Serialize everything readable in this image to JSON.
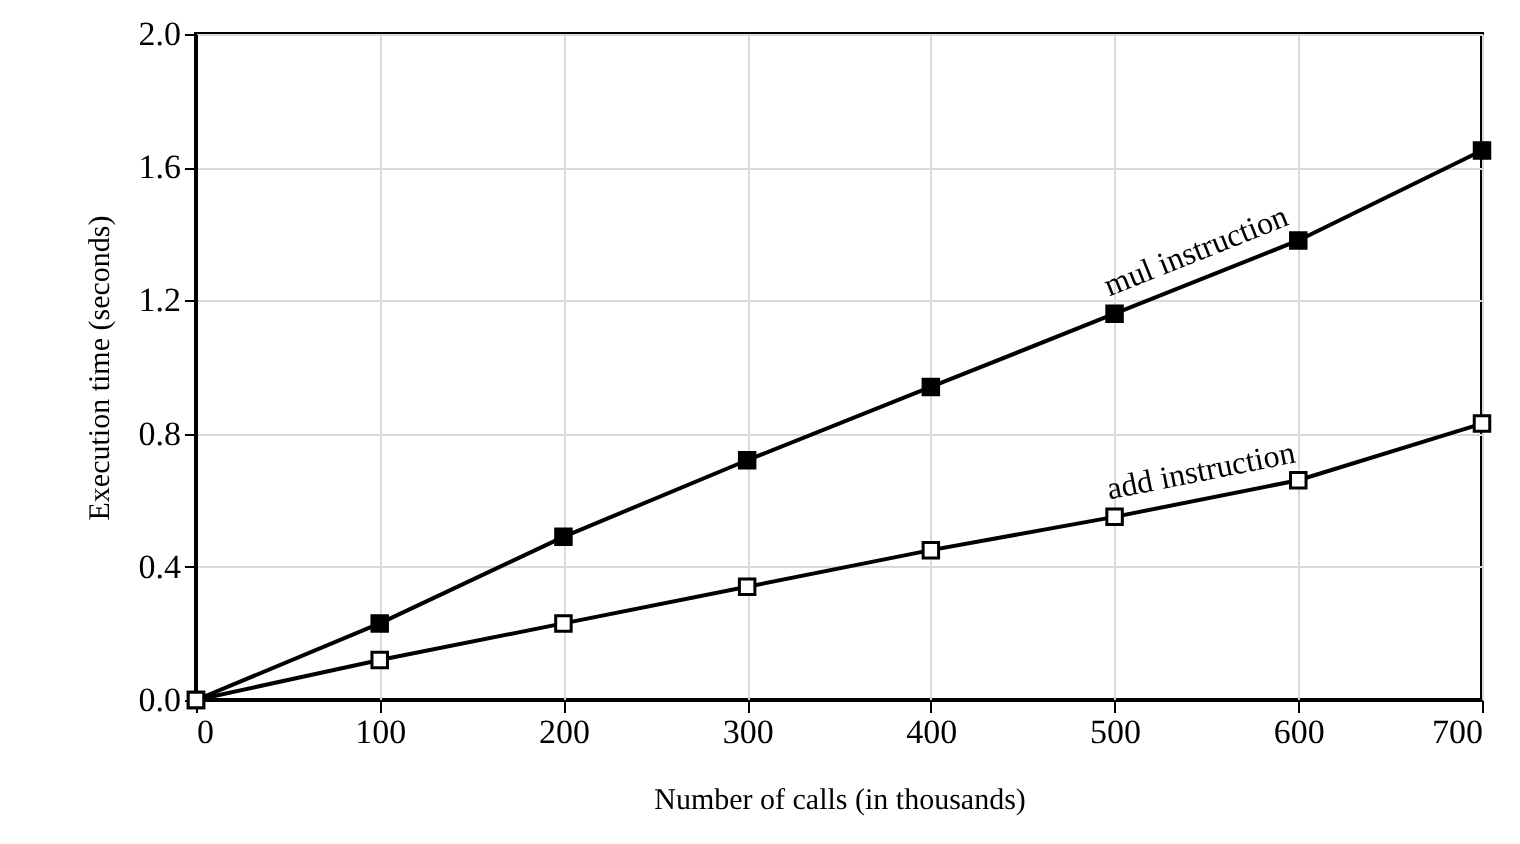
{
  "chart_data": {
    "type": "line",
    "xlabel": "Number of calls (in thousands)",
    "ylabel": "Execution time (seconds)",
    "x": [
      0,
      100,
      200,
      300,
      400,
      500,
      600,
      700
    ],
    "series": [
      {
        "name": "mul instruction",
        "color": "#000000",
        "values": [
          0,
          0.23,
          0.49,
          0.72,
          0.94,
          1.16,
          1.38,
          1.65
        ]
      },
      {
        "name": "add instruction",
        "color": "#000000",
        "values": [
          0,
          0.12,
          0.23,
          0.34,
          0.45,
          0.55,
          0.66,
          0.83
        ]
      }
    ],
    "xlim": [
      0,
      700
    ],
    "xticks": [
      0,
      100,
      200,
      300,
      400,
      500,
      600,
      700
    ],
    "ylim": [
      0,
      2
    ],
    "yticks": [
      {
        "value": 0,
        "label": "0.0"
      },
      {
        "value": 0.4,
        "label": "0.4"
      },
      {
        "value": 0.8,
        "label": "0.8"
      },
      {
        "value": 1.2,
        "label": "1.2"
      },
      {
        "value": 1.6,
        "label": "1.6"
      },
      {
        "value": 2,
        "label": "2.0"
      }
    ],
    "grid": true,
    "marker": "square",
    "line_style": "solid"
  }
}
